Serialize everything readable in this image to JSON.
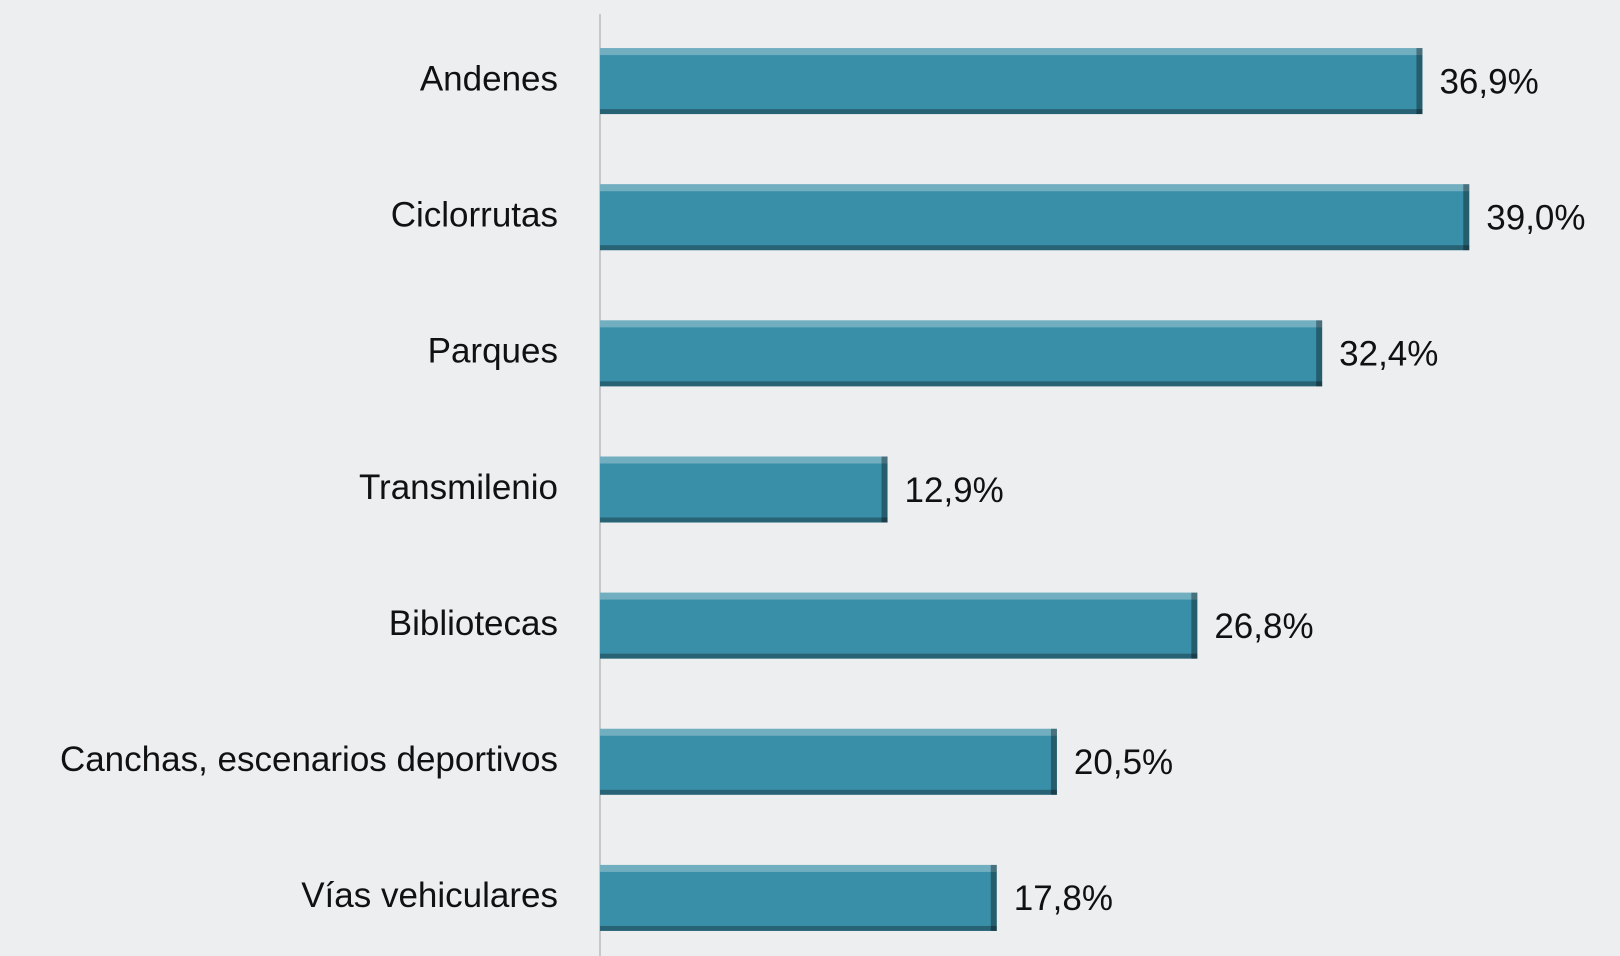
{
  "chart_data": {
    "type": "hbar",
    "categories": [
      "Andenes",
      "Ciclorrutas",
      "Parques",
      "Transmilenio",
      "Bibliotecas",
      "Canchas, escenarios deportivos",
      "Vías vehiculares"
    ],
    "values": [
      36.9,
      39.0,
      32.4,
      12.9,
      26.8,
      20.5,
      17.8
    ],
    "value_labels": [
      "36,9%",
      "39,0%",
      "32,4%",
      "12,9%",
      "26,8%",
      "20,5%",
      "17,8%"
    ],
    "color": "#3a8fa8",
    "xlim": [
      0,
      45
    ]
  }
}
